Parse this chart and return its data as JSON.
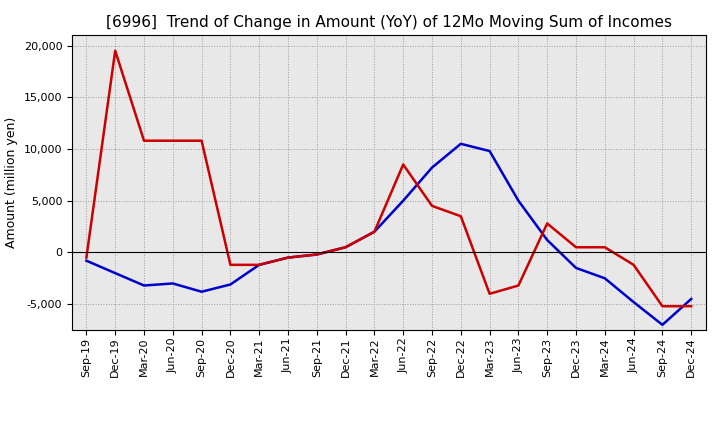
{
  "title": "[6996]  Trend of Change in Amount (YoY) of 12Mo Moving Sum of Incomes",
  "ylabel": "Amount (million yen)",
  "x_labels": [
    "Sep-19",
    "Dec-19",
    "Mar-20",
    "Jun-20",
    "Sep-20",
    "Dec-20",
    "Mar-21",
    "Jun-21",
    "Sep-21",
    "Dec-21",
    "Mar-22",
    "Jun-22",
    "Sep-22",
    "Dec-22",
    "Mar-23",
    "Jun-23",
    "Sep-23",
    "Dec-23",
    "Mar-24",
    "Jun-24",
    "Sep-24",
    "Dec-24"
  ],
  "ordinary_income": [
    -800,
    -2000,
    -3200,
    -3000,
    -3800,
    -3100,
    -1200,
    -500,
    -200,
    500,
    2000,
    5000,
    8200,
    10500,
    9800,
    5000,
    1200,
    -1500,
    -2500,
    -4800,
    -7000,
    -4500
  ],
  "net_income": [
    -500,
    19500,
    10800,
    10800,
    10800,
    -1200,
    -1200,
    -500,
    -200,
    500,
    2000,
    8500,
    4500,
    3500,
    -4000,
    -3200,
    2800,
    500,
    500,
    -1200,
    -5200,
    -5200
  ],
  "ordinary_income_color": "#0000cc",
  "net_income_color": "#cc0000",
  "background_color": "#ffffff",
  "plot_bg_color": "#e8e8e8",
  "grid_color": "#999999",
  "ylim": [
    -7500,
    21000
  ],
  "yticks": [
    -5000,
    0,
    5000,
    10000,
    15000,
    20000
  ],
  "linewidth": 1.8,
  "title_fontsize": 11,
  "legend_fontsize": 9,
  "tick_fontsize": 8,
  "ylabel_fontsize": 9
}
